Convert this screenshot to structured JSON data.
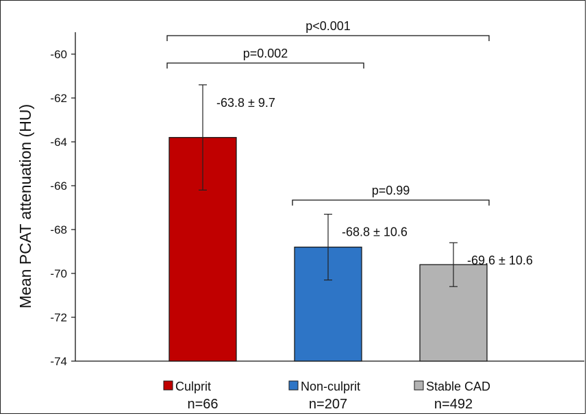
{
  "chart_data": {
    "type": "bar",
    "ylabel": "Mean PCAT attenuation (HU)",
    "ylim": [
      -74,
      -59
    ],
    "yticks": [
      -60,
      -62,
      -64,
      -66,
      -68,
      -70,
      -72,
      -74
    ],
    "grid": false,
    "categories": [
      "Culprit",
      "Non-culprit",
      "Stable CAD"
    ],
    "counts": [
      "n=66",
      "n=207",
      "n=492"
    ],
    "values": [
      -63.8,
      -68.8,
      -69.6
    ],
    "errors": [
      2.4,
      1.5,
      1.0
    ],
    "data_labels": [
      "-63.8 ± 9.7",
      "-68.8 ± 10.6",
      "-69.6 ± 10.6"
    ],
    "colors": [
      "#c00000",
      "#2e75c6",
      "#b3b3b3"
    ],
    "comparisons": [
      {
        "from": 0,
        "to": 2,
        "label": "p<0.001"
      },
      {
        "from": 0,
        "to": 1,
        "label": "p=0.002"
      },
      {
        "from": 1,
        "to": 2,
        "label": "p=0.99"
      }
    ]
  }
}
